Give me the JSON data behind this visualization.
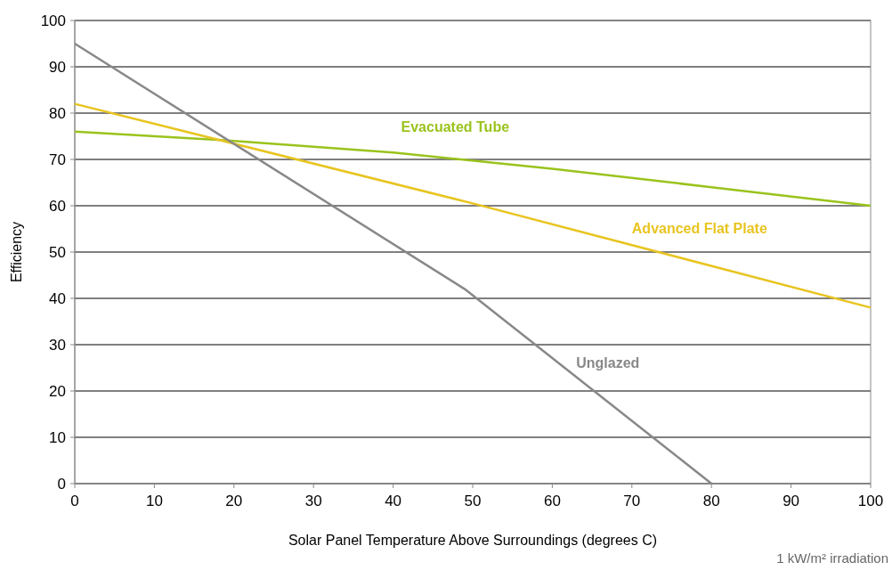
{
  "chart_data": {
    "type": "line",
    "xlabel": "Solar Panel Temperature Above Surroundings (degrees C)",
    "ylabel": "Efficiency",
    "xlim": [
      0,
      100
    ],
    "xticks": [
      0,
      10,
      20,
      30,
      40,
      50,
      60,
      70,
      80,
      90,
      100
    ],
    "ylim": [
      0,
      100
    ],
    "yticks": [
      0,
      10,
      20,
      30,
      40,
      50,
      60,
      70,
      80,
      90,
      100
    ],
    "grid": "y",
    "marker": "none",
    "line_style": "solid",
    "annotations": [
      "1 kW/m² irradiation"
    ],
    "series": [
      {
        "name": "Evacuated Tube",
        "color": "#9ac31c",
        "x": [
          0,
          20,
          40,
          60,
          80,
          100
        ],
        "values": [
          76,
          74,
          71.5,
          68,
          64,
          60
        ]
      },
      {
        "name": "Advanced Flat Plate",
        "color": "#e8c420",
        "x": [
          0,
          50,
          100
        ],
        "values": [
          82,
          60.5,
          38
        ]
      },
      {
        "name": "Unglazed",
        "color": "#888888",
        "x": [
          0,
          49,
          80
        ],
        "values": [
          95,
          42,
          0
        ]
      }
    ]
  }
}
